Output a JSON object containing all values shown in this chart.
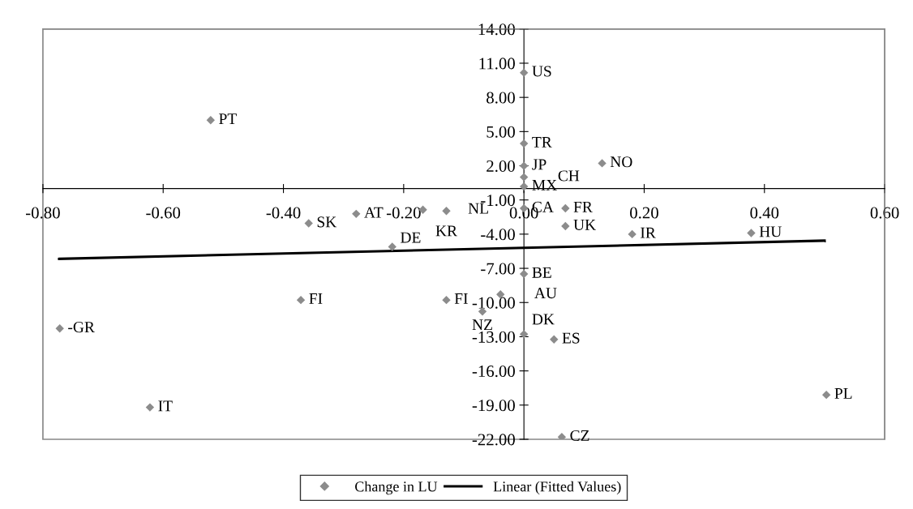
{
  "chart_data": {
    "type": "scatter",
    "xlim": [
      -0.8,
      0.6
    ],
    "ylim": [
      -22,
      14
    ],
    "xticks": [
      {
        "value": -0.8,
        "label": "-0.80"
      },
      {
        "value": -0.6,
        "label": "-0.60"
      },
      {
        "value": -0.4,
        "label": "-0.40"
      },
      {
        "value": -0.2,
        "label": "-0.20"
      },
      {
        "value": 0,
        "label": "0.00"
      },
      {
        "value": 0.2,
        "label": "0.20"
      },
      {
        "value": 0.4,
        "label": "0.40"
      },
      {
        "value": 0.6,
        "label": "0.60"
      }
    ],
    "yticks": [
      {
        "value": 14,
        "label": "14.00"
      },
      {
        "value": 11,
        "label": "11.00"
      },
      {
        "value": 8,
        "label": "8.00"
      },
      {
        "value": 5,
        "label": "5.00"
      },
      {
        "value": 2,
        "label": "2.00"
      },
      {
        "value": -1,
        "label": "-1.00"
      },
      {
        "value": -4,
        "label": "-4.00"
      },
      {
        "value": -7,
        "label": "-7.00"
      },
      {
        "value": -10,
        "label": "-10.00"
      },
      {
        "value": -13,
        "label": "-13.00"
      },
      {
        "value": -16,
        "label": "-16.00"
      },
      {
        "value": -19,
        "label": "-19.00"
      },
      {
        "value": -22,
        "label": "-22.00"
      }
    ],
    "grid": false,
    "legend": "bottom",
    "marker": "diamond",
    "series": [
      {
        "name": "Change in LU",
        "color": "#8c8c8c",
        "x": [
          -0.521,
          -0.358,
          -0.279,
          -0.168,
          -0.129,
          -0.219,
          -0.371,
          -0.129,
          -0.772,
          0,
          0,
          0,
          0,
          0,
          0,
          0.069,
          0.069,
          0.18,
          0.378,
          0.13,
          0,
          -0.039,
          -0.069,
          0,
          0.05,
          -0.622,
          0.063,
          0.503
        ],
        "values": [
          6.0,
          -3.05,
          -2.22,
          -1.86,
          -1.96,
          -5.11,
          -9.78,
          -9.78,
          -12.28,
          10.17,
          3.95,
          1.99,
          1.0,
          0.18,
          -1.73,
          -1.73,
          -3.3,
          -4.0,
          -3.9,
          2.22,
          -7.49,
          -9.29,
          -10.79,
          -12.78,
          -13.24,
          -19.2,
          -21.8,
          -18.1
        ]
      },
      {
        "name": "Linear (Fitted Values)",
        "type": "line",
        "color": "#000000",
        "marker": "none",
        "x": [
          -0.773,
          0.5
        ],
        "values": [
          -6.17,
          -4.57
        ]
      }
    ],
    "annotations": [
      {
        "text": "PT",
        "x": -0.521,
        "y": 6.0
      },
      {
        "text": "SK",
        "x": -0.358,
        "y": -3.05
      },
      {
        "text": "AT",
        "x": -0.279,
        "y": -2.22
      },
      {
        "text": "NL",
        "x": -0.168,
        "y": -1.86
      },
      {
        "text": "KR",
        "x": -0.129,
        "y": -1.96
      },
      {
        "text": "DE",
        "x": -0.219,
        "y": -5.11
      },
      {
        "text": "FI",
        "x": -0.371,
        "y": -9.78
      },
      {
        "text": "FI",
        "x": -0.129,
        "y": -9.78
      },
      {
        "text": "-GR",
        "x": -0.772,
        "y": -12.28
      },
      {
        "text": "US",
        "x": 0,
        "y": 10.17
      },
      {
        "text": "TR",
        "x": 0,
        "y": 3.95
      },
      {
        "text": "JP",
        "x": 0,
        "y": 1.99
      },
      {
        "text": "CH",
        "x": 0,
        "y": 1.0
      },
      {
        "text": "MX",
        "x": 0,
        "y": 0.18
      },
      {
        "text": "CA",
        "x": 0,
        "y": -1.73
      },
      {
        "text": "FR",
        "x": 0.069,
        "y": -1.73
      },
      {
        "text": "UK",
        "x": 0.069,
        "y": -3.3
      },
      {
        "text": "IR",
        "x": 0.18,
        "y": -4.0
      },
      {
        "text": "HU",
        "x": 0.378,
        "y": -3.9
      },
      {
        "text": "NO",
        "x": 0.13,
        "y": 2.22
      },
      {
        "text": "BE",
        "x": 0,
        "y": -7.49
      },
      {
        "text": "AU",
        "x": -0.039,
        "y": -9.29
      },
      {
        "text": "NZ",
        "x": -0.069,
        "y": -10.79
      },
      {
        "text": "DK",
        "x": 0,
        "y": -12.78
      },
      {
        "text": "ES",
        "x": 0.05,
        "y": -13.24
      },
      {
        "text": "IT",
        "x": -0.622,
        "y": -19.2
      },
      {
        "text": "CZ",
        "x": 0.063,
        "y": -21.8
      },
      {
        "text": "PL",
        "x": 0.503,
        "y": -18.1
      }
    ]
  }
}
